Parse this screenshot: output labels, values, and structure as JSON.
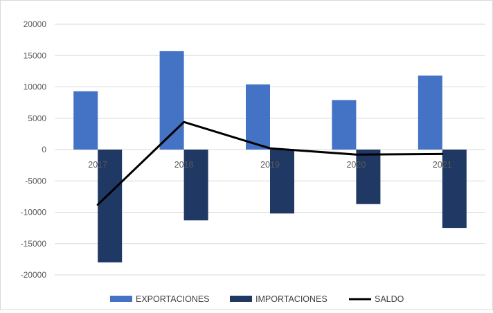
{
  "chart_data": {
    "type": "bar",
    "title": "",
    "xlabel": "",
    "ylabel": "",
    "categories": [
      "2017",
      "2018",
      "2019",
      "2020",
      "2021"
    ],
    "series": [
      {
        "name": "EXPORTACIONES",
        "kind": "bar",
        "color": "#4472c4",
        "values": [
          9300,
          15700,
          10400,
          7900,
          11800
        ]
      },
      {
        "name": "IMPORTACIONES",
        "kind": "bar",
        "color": "#1f3864",
        "values": [
          -18000,
          -11300,
          -10200,
          -8700,
          -12500
        ]
      },
      {
        "name": "SALDO",
        "kind": "line",
        "color": "#000000",
        "values": [
          -8800,
          4400,
          200,
          -800,
          -700
        ]
      }
    ],
    "ylim": [
      -20000,
      20000
    ],
    "yticks": [
      20000,
      15000,
      10000,
      5000,
      0,
      -5000,
      -10000,
      -15000,
      -20000
    ],
    "grid": true,
    "legend_position": "bottom"
  }
}
